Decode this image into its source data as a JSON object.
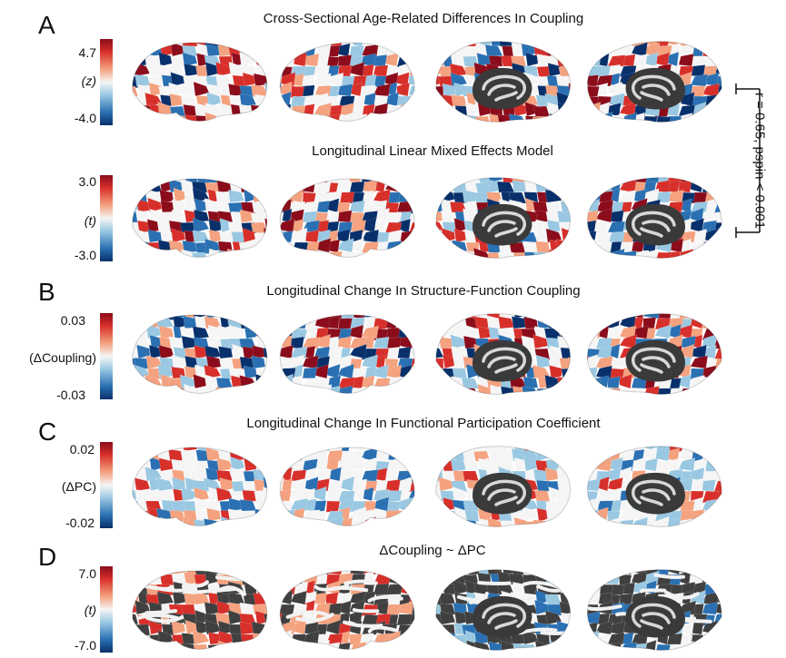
{
  "panels": [
    {
      "letter": "A",
      "title": "Cross-Sectional Age-Related Differences In Coupling",
      "cbar_max": "4.7",
      "cbar_unit": "(z)",
      "cbar_min": "-4.0",
      "style": "full"
    },
    {
      "letter": "",
      "title": "Longitudinal Linear Mixed Effects Model",
      "cbar_max": "3.0",
      "cbar_unit": "(t)",
      "cbar_min": "-3.0",
      "style": "full"
    },
    {
      "letter": "B",
      "title": "Longitudinal Change In Structure-Function Coupling",
      "cbar_max": "0.03",
      "cbar_unit": "(ΔCoupling)",
      "cbar_min": "-0.03",
      "style": "full"
    },
    {
      "letter": "C",
      "title": "Longitudinal Change In Functional Participation Coefficient",
      "cbar_max": "0.02",
      "cbar_unit": "(ΔPC)",
      "cbar_min": "-0.02",
      "style": "muted"
    },
    {
      "letter": "D",
      "title": "ΔCoupling ~ ΔPC",
      "cbar_max": "7.0",
      "cbar_unit": "(t)",
      "cbar_min": "-7.0",
      "style": "masked"
    }
  ],
  "correlation_annotation": "r = 0.65, pspin < 0.001",
  "colors": {
    "dark_red": "#8b0c1b",
    "red": "#d7302b",
    "light_red": "#f4a27f",
    "white": "#f5f5f5",
    "light_blue": "#9ac8e2",
    "blue": "#2a70b2",
    "dark_blue": "#08306b",
    "medial_wall": "#3a3a3a",
    "mask_gray": "#404040"
  }
}
